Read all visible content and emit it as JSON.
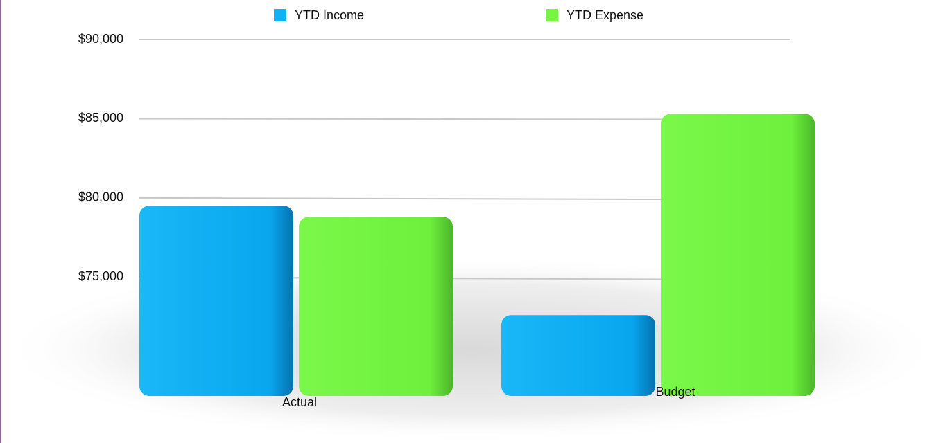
{
  "chart_data": {
    "type": "bar",
    "categories": [
      "Actual",
      "Budget"
    ],
    "series": [
      {
        "name": "YTD Income",
        "color": "#0fb3f5",
        "values": [
          79500,
          72600
        ]
      },
      {
        "name": "YTD Expense",
        "color": "#76f542",
        "values": [
          78800,
          85300
        ]
      }
    ],
    "ylim": [
      67500,
      90000
    ],
    "yticks": [
      {
        "value": 75000,
        "label": "$75,000"
      },
      {
        "value": 80000,
        "label": "$80,000"
      },
      {
        "value": 85000,
        "label": "$85,000"
      },
      {
        "value": 90000,
        "label": "$90,000"
      }
    ],
    "grid": true,
    "legend": "top"
  }
}
